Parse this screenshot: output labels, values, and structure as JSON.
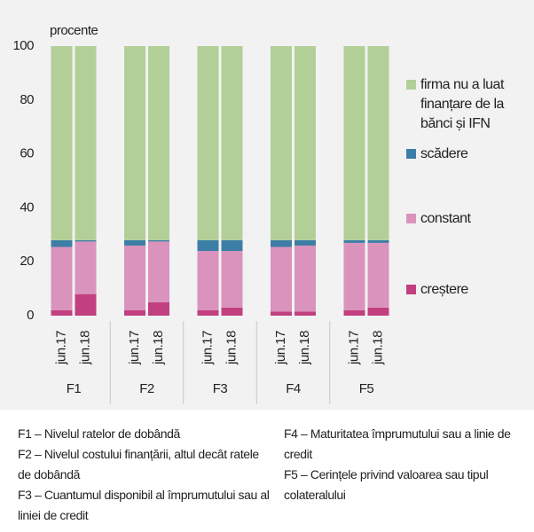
{
  "chart_data": {
    "type": "stacked_bar",
    "y_label": "procente",
    "groups": [
      "F1",
      "F2",
      "F3",
      "F4",
      "F5"
    ],
    "categories": [
      "jun.17",
      "jun.18",
      "jun.17",
      "jun.18",
      "jun.17",
      "jun.18",
      "jun.17",
      "jun.18",
      "jun.17",
      "jun.18"
    ],
    "series": [
      {
        "name": "creștere",
        "color": "#c2407f",
        "values": [
          2,
          8,
          2,
          5,
          2,
          3,
          1.5,
          1.5,
          2,
          3
        ]
      },
      {
        "name": "constant",
        "color": "#d993bd",
        "values": [
          23.5,
          19.5,
          24,
          22.5,
          22,
          21,
          24,
          24.5,
          25,
          24
        ]
      },
      {
        "name": "scădere",
        "color": "#3d7ea6",
        "values": [
          2.5,
          0.5,
          2,
          0.5,
          4,
          4,
          2.5,
          2,
          1,
          1
        ]
      },
      {
        "name": "firma nu a luat finanțare de la bănci și IFN",
        "color": "#b3cf98",
        "values": [
          72,
          72,
          72,
          72,
          72,
          72,
          72,
          72,
          72,
          72
        ]
      }
    ],
    "ylim": [
      0,
      100
    ],
    "yticks": [
      0,
      20,
      40,
      60,
      80,
      100
    ],
    "grid": false,
    "notes": [
      "F1 – Nivelul ratelor de dobândă",
      "F2 – Nivelul costului finanțării, altul decât ratele de dobândă",
      "F3 – Cuantumul disponibil al împrumutului sau al liniei de credit",
      "F4 – Maturitatea împrumutului sau a linie de credit",
      "F5 – Cerințele privind valoarea sau tipul colateralului"
    ]
  }
}
